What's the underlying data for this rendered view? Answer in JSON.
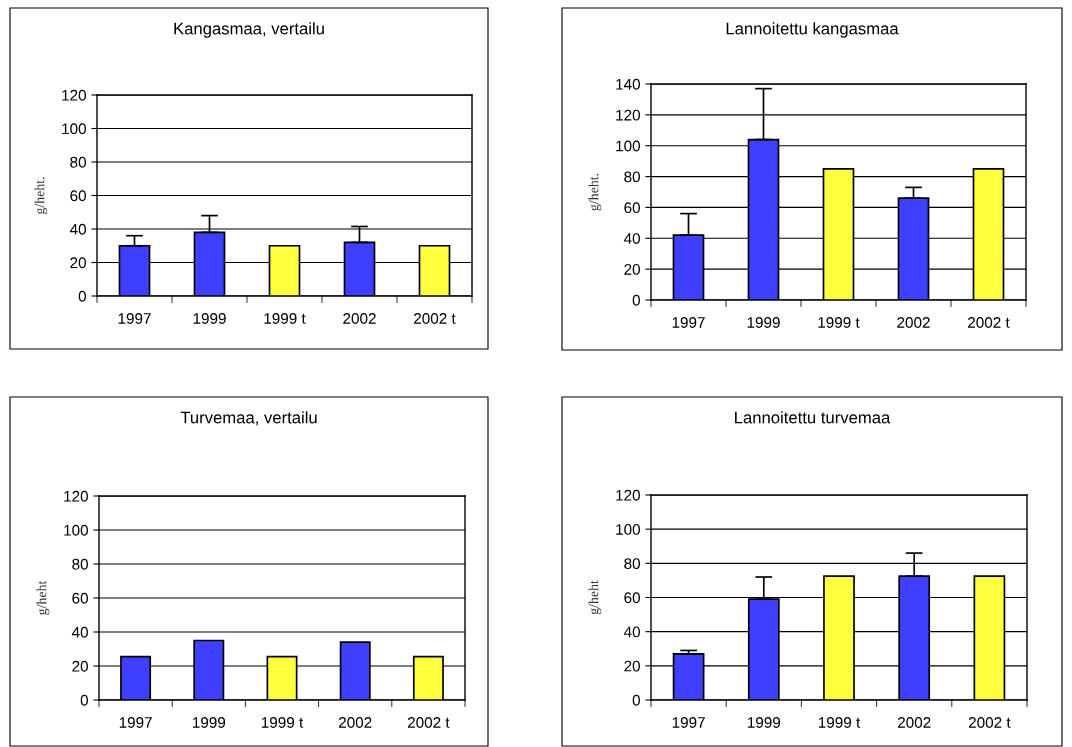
{
  "chart_data": [
    {
      "type": "bar",
      "title": "Kangasmaa, vertailu",
      "ylabel": "g/heht.",
      "categories": [
        "1997",
        "1999",
        "1999 t",
        "2002",
        "2002 t"
      ],
      "values": [
        30,
        38,
        30,
        32,
        30
      ],
      "colors": [
        "#3f3fff",
        "#3f3fff",
        "#ffff3f",
        "#3f3fff",
        "#ffff3f"
      ],
      "errors": [
        [
          30,
          36
        ],
        [
          38,
          48
        ],
        null,
        [
          32,
          41.5
        ],
        null
      ],
      "ylim": [
        0,
        120
      ],
      "yticks": [
        0,
        20,
        40,
        60,
        80,
        100,
        120
      ],
      "grid": "y"
    },
    {
      "type": "bar",
      "title": "Lannoitettu kangasmaa",
      "ylabel": "g/heht.",
      "categories": [
        "1997",
        "1999",
        "1999 t",
        "2002",
        "2002 t"
      ],
      "values": [
        42,
        104,
        85,
        66,
        85
      ],
      "colors": [
        "#3f3fff",
        "#3f3fff",
        "#ffff3f",
        "#3f3fff",
        "#ffff3f"
      ],
      "errors": [
        [
          42,
          56
        ],
        [
          104,
          137
        ],
        null,
        [
          66,
          73
        ],
        null
      ],
      "ylim": [
        0,
        140
      ],
      "yticks": [
        0,
        20,
        40,
        60,
        80,
        100,
        120,
        140
      ],
      "grid": "y"
    },
    {
      "type": "bar",
      "title": "Turvemaa, vertailu",
      "ylabel": "g/heht",
      "categories": [
        "1997",
        "1999",
        "1999 t",
        "2002",
        "2002 t"
      ],
      "values": [
        25.5,
        35,
        25.5,
        34,
        25.5
      ],
      "colors": [
        "#3f3fff",
        "#3f3fff",
        "#ffff3f",
        "#3f3fff",
        "#ffff3f"
      ],
      "ylim": [
        0,
        120
      ],
      "yticks": [
        0,
        20,
        40,
        60,
        80,
        100,
        120
      ],
      "grid": "y"
    },
    {
      "type": "bar",
      "title": "Lannoitettu turvemaa",
      "ylabel": "g/heht",
      "categories": [
        "1997",
        "1999",
        "1999 t",
        "2002",
        "2002 t"
      ],
      "values": [
        27,
        59,
        72.5,
        72.5,
        72.5
      ],
      "colors": [
        "#3f3fff",
        "#3f3fff",
        "#ffff3f",
        "#3f3fff",
        "#ffff3f"
      ],
      "errors": [
        [
          27,
          29
        ],
        [
          59,
          72
        ],
        null,
        [
          72.5,
          86
        ],
        null
      ],
      "ylim": [
        0,
        120
      ],
      "yticks": [
        0,
        20,
        40,
        60,
        80,
        100,
        120
      ],
      "grid": "y"
    }
  ]
}
